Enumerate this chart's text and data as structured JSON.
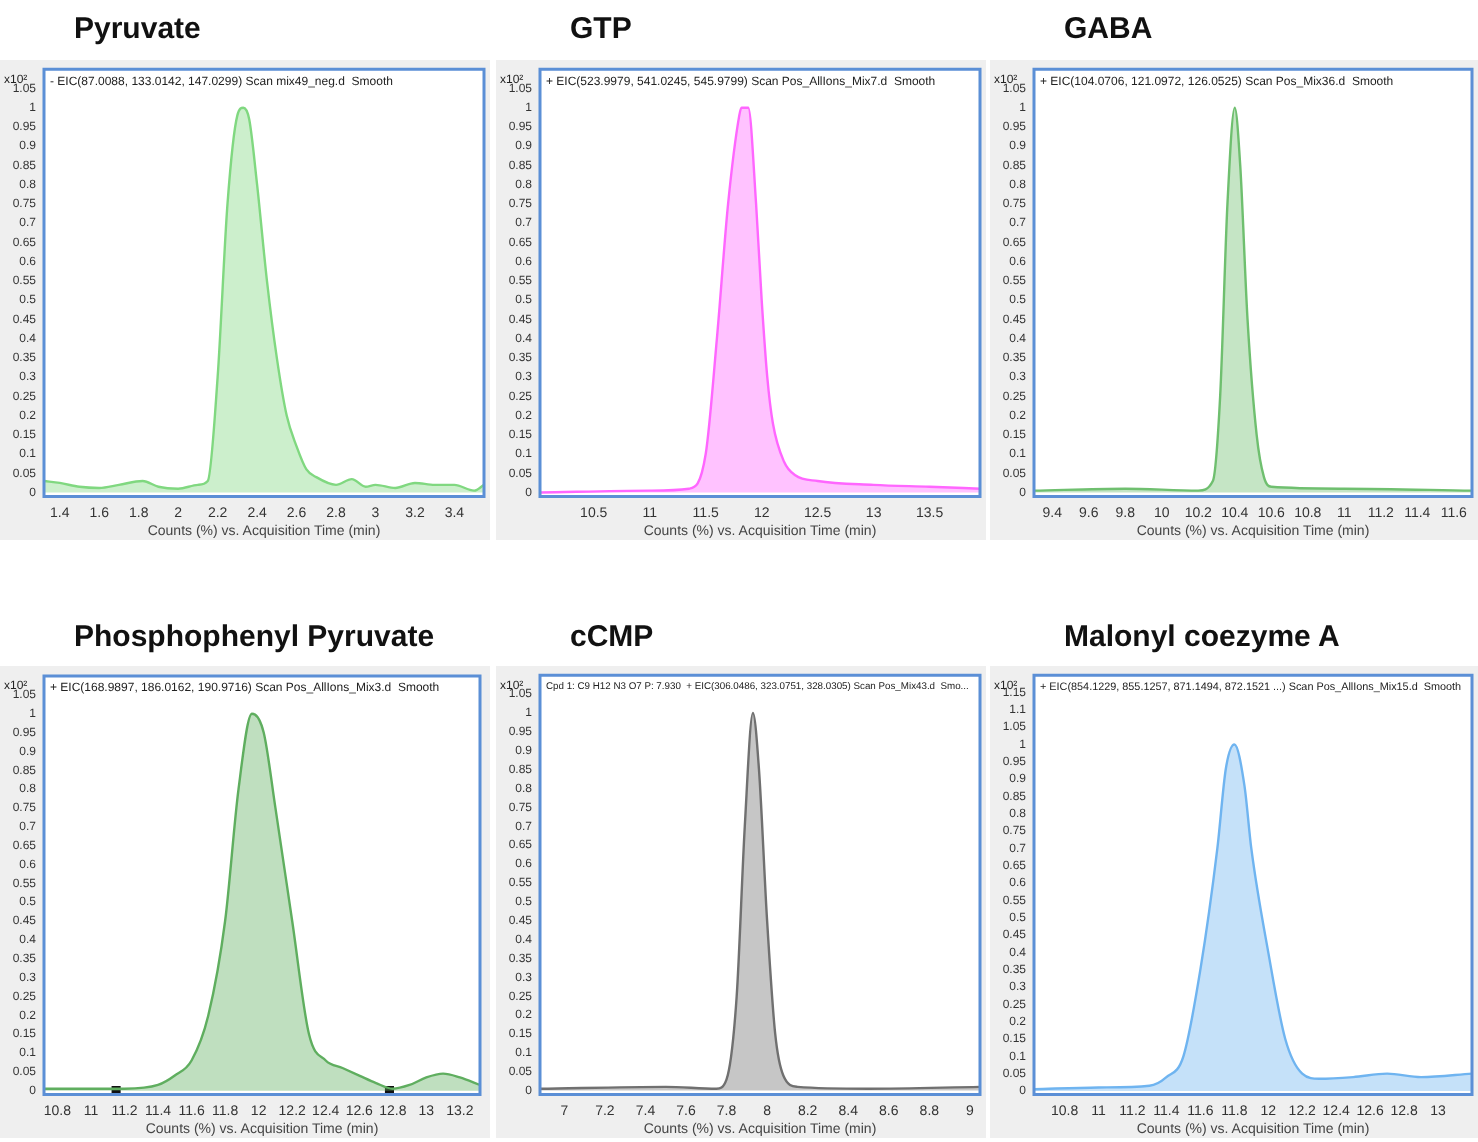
{
  "chart_data": [
    {
      "type": "area",
      "title": "Pyruvate",
      "ylabel": "x10²",
      "xlabel": "Counts (%) vs. Acquisition Time (min)",
      "annotations": [
        "- EIC(87.0088, 133.0142, 147.0299) Scan mix49_neg.d  Smooth"
      ],
      "xlim": [
        1.32,
        3.55
      ],
      "xticks": [
        1.4,
        1.6,
        1.8,
        2,
        2.2,
        2.4,
        2.6,
        2.8,
        3,
        3.2,
        3.4
      ],
      "ylim": [
        -0.01,
        1.1
      ],
      "yticks": [
        0,
        0.05,
        0.1,
        0.15,
        0.2,
        0.25,
        0.3,
        0.35,
        0.4,
        0.45,
        0.5,
        0.55,
        0.6,
        0.65,
        0.7,
        0.75,
        0.8,
        0.85,
        0.9,
        0.95,
        1,
        1.05
      ],
      "grid": false,
      "legend": false,
      "marker": "none",
      "series": [
        {
          "color": "#80d880",
          "x": [
            1.32,
            1.4,
            1.5,
            1.6,
            1.7,
            1.82,
            1.9,
            2.0,
            2.1,
            2.15,
            2.2,
            2.25,
            2.3,
            2.33,
            2.36,
            2.4,
            2.45,
            2.5,
            2.55,
            2.6,
            2.65,
            2.7,
            2.8,
            2.88,
            2.95,
            3.0,
            3.1,
            3.2,
            3.3,
            3.4,
            3.5,
            3.55
          ],
          "values": [
            0.03,
            0.025,
            0.015,
            0.012,
            0.02,
            0.03,
            0.015,
            0.01,
            0.02,
            0.03,
            0.3,
            0.75,
            0.98,
            1.0,
            0.97,
            0.8,
            0.55,
            0.35,
            0.2,
            0.12,
            0.06,
            0.04,
            0.02,
            0.035,
            0.015,
            0.02,
            0.012,
            0.025,
            0.02,
            0.02,
            0.005,
            0.02
          ]
        }
      ]
    },
    {
      "type": "area",
      "title": "GTP",
      "ylabel": "x10²",
      "xlabel": "Counts (%) vs. Acquisition Time (min)",
      "annotations": [
        "+ EIC(523.9979, 541.0245, 545.9799) Scan Pos_AllIons_Mix7.d  Smooth"
      ],
      "xlim": [
        10.02,
        13.95
      ],
      "xticks": [
        10.5,
        11,
        11.5,
        12,
        12.5,
        13,
        13.5
      ],
      "ylim": [
        -0.01,
        1.1
      ],
      "yticks": [
        0,
        0.05,
        0.1,
        0.15,
        0.2,
        0.25,
        0.3,
        0.35,
        0.4,
        0.45,
        0.5,
        0.55,
        0.6,
        0.65,
        0.7,
        0.75,
        0.8,
        0.85,
        0.9,
        0.95,
        1,
        1.05
      ],
      "grid": false,
      "legend": false,
      "marker": "none",
      "series": [
        {
          "color": "#ff66ff",
          "x": [
            10.02,
            11.0,
            11.35,
            11.5,
            11.6,
            11.7,
            11.8,
            11.82,
            11.88,
            11.95,
            12.0,
            12.05,
            12.1,
            12.2,
            12.3,
            12.5,
            13.0,
            13.5,
            13.95
          ],
          "values": [
            0,
            0.005,
            0.01,
            0.1,
            0.4,
            0.75,
            0.98,
            1.0,
            1.0,
            0.75,
            0.5,
            0.3,
            0.18,
            0.08,
            0.045,
            0.03,
            0.02,
            0.015,
            0.01
          ]
        }
      ]
    },
    {
      "type": "area",
      "title": "GABA",
      "ylabel": "x10²",
      "xlabel": "Counts (%) vs. Acquisition Time (min)",
      "annotations": [
        "+ EIC(104.0706, 121.0972, 126.0525) Scan Pos_Mix36.d  Smooth"
      ],
      "xlim": [
        9.3,
        11.7
      ],
      "xticks": [
        9.4,
        9.6,
        9.8,
        10,
        10.2,
        10.4,
        10.6,
        10.8,
        11,
        11.2,
        11.4,
        11.6
      ],
      "ylim": [
        -0.01,
        1.1
      ],
      "yticks": [
        0,
        0.05,
        0.1,
        0.15,
        0.2,
        0.25,
        0.3,
        0.35,
        0.4,
        0.45,
        0.5,
        0.55,
        0.6,
        0.65,
        0.7,
        0.75,
        0.8,
        0.85,
        0.9,
        0.95,
        1,
        1.05
      ],
      "grid": false,
      "legend": false,
      "marker": "none",
      "series": [
        {
          "color": "#6fbf6f",
          "x": [
            9.3,
            9.8,
            10.2,
            10.28,
            10.32,
            10.36,
            10.4,
            10.43,
            10.47,
            10.52,
            10.56,
            10.6,
            11.0,
            11.7
          ],
          "values": [
            0.005,
            0.01,
            0.005,
            0.03,
            0.25,
            0.75,
            1.0,
            0.85,
            0.45,
            0.15,
            0.04,
            0.015,
            0.01,
            0.005
          ]
        }
      ]
    },
    {
      "type": "area",
      "title": "Phosphophenyl Pyruvate",
      "ylabel": "x10²",
      "xlabel": "Counts (%) vs. Acquisition Time (min)",
      "annotations": [
        "+ EIC(168.9897, 186.0162, 190.9716) Scan Pos_AllIons_Mix3.d  Smooth"
      ],
      "xlim": [
        10.72,
        13.32
      ],
      "xticks": [
        10.8,
        11,
        11.2,
        11.4,
        11.6,
        11.8,
        12,
        12.2,
        12.4,
        12.6,
        12.8,
        13,
        13.2
      ],
      "ylim": [
        -0.01,
        1.1
      ],
      "yticks": [
        0,
        0.05,
        0.1,
        0.15,
        0.2,
        0.25,
        0.3,
        0.35,
        0.4,
        0.45,
        0.5,
        0.55,
        0.6,
        0.65,
        0.7,
        0.75,
        0.8,
        0.85,
        0.9,
        0.95,
        1,
        1.05
      ],
      "grid": false,
      "legend": false,
      "marker": "none",
      "series": [
        {
          "color": "#5fae5f",
          "x": [
            10.72,
            11.2,
            11.4,
            11.5,
            11.6,
            11.7,
            11.8,
            11.88,
            11.96,
            12.03,
            12.1,
            12.2,
            12.3,
            12.4,
            12.5,
            12.6,
            12.7,
            12.8,
            12.9,
            13.0,
            13.1,
            13.2,
            13.32
          ],
          "values": [
            0.005,
            0.005,
            0.015,
            0.04,
            0.08,
            0.2,
            0.45,
            0.8,
            1.0,
            0.95,
            0.75,
            0.45,
            0.15,
            0.08,
            0.06,
            0.04,
            0.02,
            0.005,
            0.015,
            0.035,
            0.045,
            0.035,
            0.015
          ]
        },
        {
          "type": "scatter",
          "marker": "square",
          "color": "#111111",
          "x": [
            11.15,
            12.78
          ],
          "values": [
            0,
            0
          ]
        }
      ]
    },
    {
      "type": "area",
      "title": "cCMP",
      "ylabel": "x10²",
      "xlabel": "Counts (%) vs. Acquisition Time (min)",
      "annotations": [
        "Cpd 1: C9 H12 N3 O7 P: 7.930  + EIC(306.0486, 323.0751, 328.0305) Scan Pos_Mix43.d  Smo..."
      ],
      "xlim": [
        6.88,
        9.05
      ],
      "xticks": [
        7,
        7.2,
        7.4,
        7.6,
        7.8,
        8,
        8.2,
        8.4,
        8.6,
        8.8,
        9
      ],
      "ylim": [
        -0.01,
        1.1
      ],
      "yticks": [
        0,
        0.05,
        0.1,
        0.15,
        0.2,
        0.25,
        0.3,
        0.35,
        0.4,
        0.45,
        0.5,
        0.55,
        0.6,
        0.65,
        0.7,
        0.75,
        0.8,
        0.85,
        0.9,
        0.95,
        1,
        1.05
      ],
      "grid": false,
      "legend": false,
      "marker": "none",
      "series": [
        {
          "color": "#707070",
          "x": [
            6.88,
            7.5,
            7.75,
            7.8,
            7.85,
            7.89,
            7.93,
            7.96,
            8.0,
            8.04,
            8.08,
            8.15,
            8.5,
            9.05
          ],
          "values": [
            0.005,
            0.01,
            0.005,
            0.03,
            0.25,
            0.7,
            1.0,
            0.85,
            0.45,
            0.15,
            0.04,
            0.01,
            0.005,
            0.01
          ]
        }
      ]
    },
    {
      "type": "area",
      "title": "Malonyl coezyme A",
      "ylabel": "x10²",
      "xlabel": "Counts (%) vs. Acquisition Time (min)",
      "annotations": [
        "+ EIC(854.1229, 855.1257, 871.1494, 872.1521 ...) Scan Pos_AllIons_Mix15.d  Smooth"
      ],
      "xlim": [
        10.62,
        13.2
      ],
      "xticks": [
        10.8,
        11,
        11.2,
        11.4,
        11.6,
        11.8,
        12,
        12.2,
        12.4,
        12.6,
        12.8,
        13
      ],
      "ylim": [
        -0.01,
        1.2
      ],
      "yticks": [
        0,
        0.05,
        0.1,
        0.15,
        0.2,
        0.25,
        0.3,
        0.35,
        0.4,
        0.45,
        0.5,
        0.55,
        0.6,
        0.65,
        0.7,
        0.75,
        0.8,
        0.85,
        0.9,
        0.95,
        1,
        1.05,
        1.1,
        1.15
      ],
      "grid": false,
      "legend": false,
      "marker": "none",
      "series": [
        {
          "color": "#6fb4f0",
          "x": [
            10.62,
            11.0,
            11.3,
            11.4,
            11.5,
            11.6,
            11.7,
            11.75,
            11.8,
            11.86,
            11.9,
            12.0,
            12.1,
            12.2,
            12.3,
            12.5,
            12.7,
            12.9,
            13.2
          ],
          "values": [
            0.005,
            0.01,
            0.015,
            0.04,
            0.1,
            0.35,
            0.7,
            0.93,
            1.0,
            0.88,
            0.7,
            0.4,
            0.15,
            0.05,
            0.035,
            0.04,
            0.05,
            0.04,
            0.05
          ]
        }
      ]
    }
  ]
}
